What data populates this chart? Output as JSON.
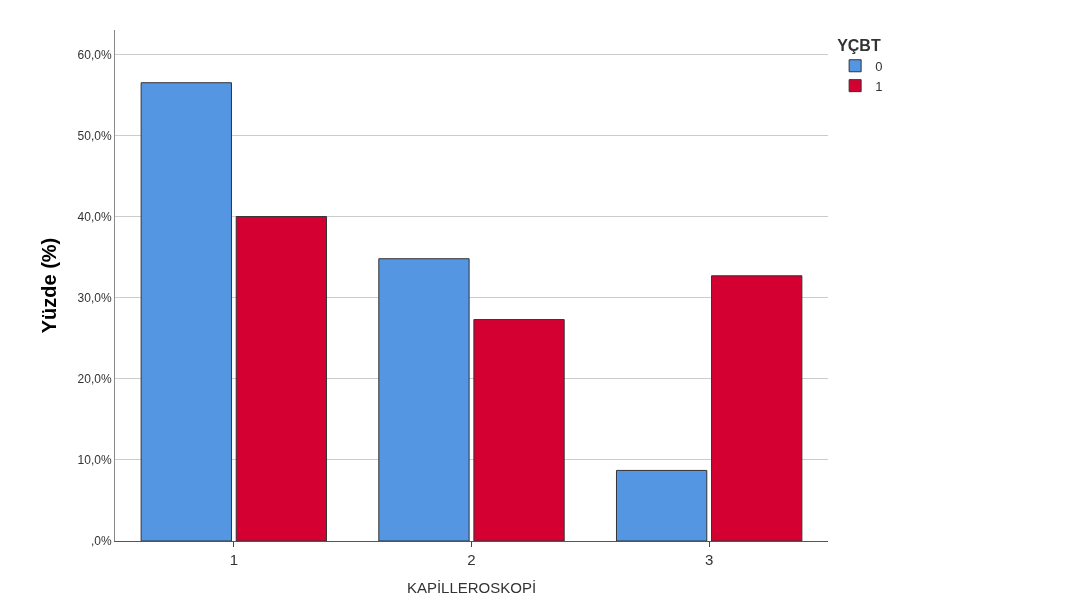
{
  "chart_data": {
    "type": "bar",
    "xlabel": "KAPİLLEROSKOPİ",
    "ylabel": "Yüzde (%)",
    "legend_title": "YÇBT",
    "categories": [
      "1",
      "2",
      "3"
    ],
    "series": [
      {
        "name": "0",
        "color": "#5596e3",
        "values": [
          56.5,
          34.8,
          8.7
        ]
      },
      {
        "name": "1",
        "color": "#d50032",
        "values": [
          40.0,
          27.3,
          32.7
        ]
      }
    ],
    "ylim": [
      0,
      63
    ],
    "yticks": [
      {
        "value": 0,
        "label": ",0%"
      },
      {
        "value": 10,
        "label": "10,0%"
      },
      {
        "value": 20,
        "label": "20,0%"
      },
      {
        "value": 30,
        "label": "30,0%"
      },
      {
        "value": 40,
        "label": "40,0%"
      },
      {
        "value": 50,
        "label": "50,0%"
      },
      {
        "value": 60,
        "label": "60,0%"
      }
    ],
    "grid": "y",
    "legend": "top right"
  }
}
